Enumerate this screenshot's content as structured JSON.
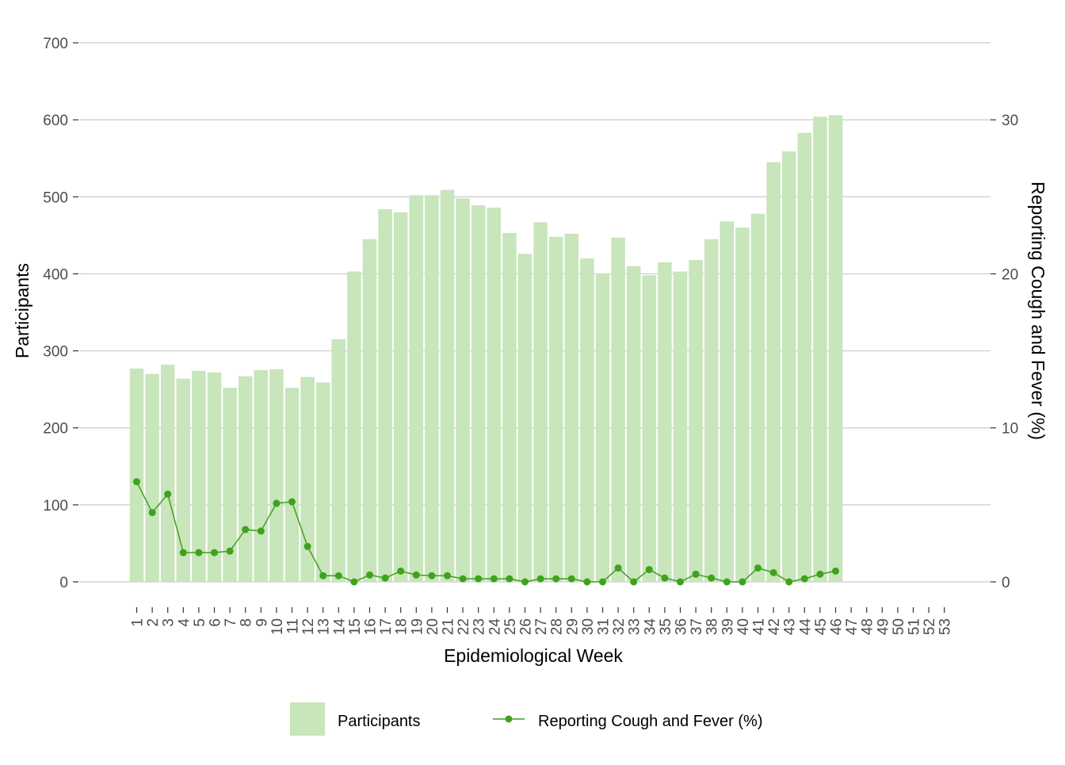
{
  "chart_data": {
    "type": "bar",
    "xlabel": "Epidemiological Week",
    "ylabel": "Participants",
    "y2label": "Reporting Cough and Fever (%)",
    "ylim": [
      0,
      700
    ],
    "y2lim": [
      0,
      35
    ],
    "yticks": [
      0,
      100,
      200,
      300,
      400,
      500,
      600,
      700
    ],
    "y2ticks": [
      0,
      10,
      20,
      30
    ],
    "grid": true,
    "legend_position": "bottom",
    "categories": [
      "1",
      "2",
      "3",
      "4",
      "5",
      "6",
      "7",
      "8",
      "9",
      "10",
      "11",
      "12",
      "13",
      "14",
      "15",
      "16",
      "17",
      "18",
      "19",
      "20",
      "21",
      "22",
      "23",
      "24",
      "25",
      "26",
      "27",
      "28",
      "29",
      "30",
      "31",
      "32",
      "33",
      "34",
      "35",
      "36",
      "37",
      "38",
      "39",
      "40",
      "41",
      "42",
      "43",
      "44",
      "45",
      "46",
      "47",
      "48",
      "49",
      "50",
      "51",
      "52",
      "53"
    ],
    "series": [
      {
        "name": "Participants",
        "type": "bar",
        "axis": "left",
        "color": "#c8e5bb",
        "values": [
          277,
          270,
          282,
          264,
          274,
          272,
          252,
          267,
          275,
          276,
          252,
          266,
          259,
          315,
          403,
          445,
          484,
          480,
          502,
          502,
          509,
          498,
          489,
          486,
          453,
          426,
          467,
          448,
          452,
          420,
          400,
          447,
          410,
          398,
          415,
          403,
          418,
          445,
          468,
          460,
          478,
          545,
          559,
          583,
          604,
          606,
          null,
          null,
          null,
          null,
          null,
          null,
          null
        ]
      },
      {
        "name": "Reporting Cough and Fever (%)",
        "type": "line",
        "axis": "right",
        "color": "#3ea21d",
        "values": [
          6.5,
          4.5,
          5.7,
          1.9,
          1.9,
          1.9,
          2.0,
          3.4,
          3.3,
          5.1,
          5.2,
          2.3,
          0.4,
          0.4,
          0.0,
          0.45,
          0.25,
          0.7,
          0.45,
          0.4,
          0.4,
          0.2,
          0.2,
          0.2,
          0.2,
          0.0,
          0.2,
          0.2,
          0.2,
          0.0,
          0.0,
          0.9,
          0.0,
          0.8,
          0.25,
          0.0,
          0.5,
          0.25,
          0.0,
          0.0,
          0.9,
          0.6,
          0.0,
          0.2,
          0.5,
          0.7,
          null,
          null,
          null,
          null,
          null,
          null,
          null
        ]
      }
    ],
    "legend": [
      {
        "label": "Participants",
        "kind": "bar-swatch"
      },
      {
        "label": "Reporting Cough and Fever (%)",
        "kind": "line-point"
      }
    ]
  }
}
